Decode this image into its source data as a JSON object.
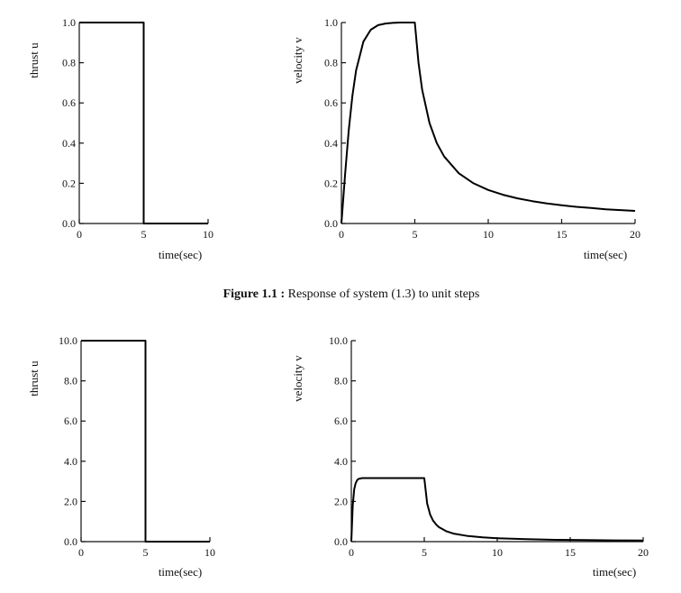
{
  "caption": {
    "prefix": "Figure 1.1 :",
    "text": " Response of system (1.3) to unit steps"
  },
  "chart_data": [
    {
      "type": "line",
      "ylabel": "thrust  u",
      "xlabel": "time(sec)",
      "xlim": [
        0,
        10
      ],
      "ylim": [
        0,
        1
      ],
      "xticks": [
        0,
        5,
        10
      ],
      "xtick_labels": [
        "0",
        "5",
        "10"
      ],
      "yticks": [
        0,
        0.2,
        0.4,
        0.6,
        0.8,
        1.0
      ],
      "ytick_labels": [
        "0.0",
        "0.2",
        "0.4",
        "0.6",
        "0.8",
        "1.0"
      ],
      "series": [
        {
          "x": [
            0,
            5,
            5,
            10
          ],
          "y": [
            1.0,
            1.0,
            0.0,
            0.0
          ]
        }
      ]
    },
    {
      "type": "line",
      "ylabel": "velocity  v",
      "xlabel": "time(sec)",
      "xlim": [
        0,
        20
      ],
      "ylim": [
        0,
        1
      ],
      "xticks": [
        0,
        5,
        10,
        15,
        20
      ],
      "xtick_labels": [
        "0",
        "5",
        "10",
        "15",
        "20"
      ],
      "yticks": [
        0,
        0.2,
        0.4,
        0.6,
        0.8,
        1.0
      ],
      "ytick_labels": [
        "0.0",
        "0.2",
        "0.4",
        "0.6",
        "0.8",
        "1.0"
      ],
      "series": [
        {
          "x": [
            0,
            0.25,
            0.5,
            0.75,
            1,
            1.5,
            2,
            2.5,
            3,
            3.5,
            4,
            5,
            5.25,
            5.5,
            6,
            6.5,
            7,
            8,
            9,
            10,
            11,
            12,
            13,
            14,
            15,
            16,
            17,
            18,
            19,
            20
          ],
          "y": [
            0,
            0.245,
            0.462,
            0.635,
            0.762,
            0.905,
            0.964,
            0.987,
            0.995,
            0.998,
            1.0,
            1.0,
            0.8,
            0.667,
            0.5,
            0.4,
            0.333,
            0.25,
            0.2,
            0.167,
            0.143,
            0.125,
            0.111,
            0.1,
            0.091,
            0.083,
            0.077,
            0.071,
            0.067,
            0.063
          ]
        }
      ]
    },
    {
      "type": "line",
      "ylabel": "thrust  u",
      "xlabel": "time(sec)",
      "xlim": [
        0,
        10
      ],
      "ylim": [
        0,
        10
      ],
      "xticks": [
        0,
        5,
        10
      ],
      "xtick_labels": [
        "0",
        "5",
        "10"
      ],
      "yticks": [
        0,
        2,
        4,
        6,
        8,
        10
      ],
      "ytick_labels": [
        "0.0",
        "2.0",
        "4.0",
        "6.0",
        "8.0",
        "10.0"
      ],
      "series": [
        {
          "x": [
            0,
            5,
            5,
            10
          ],
          "y": [
            10.0,
            10.0,
            0.0,
            0.0
          ]
        }
      ]
    },
    {
      "type": "line",
      "ylabel": "velocity  v",
      "xlabel": "time(sec)",
      "xlim": [
        0,
        20
      ],
      "ylim": [
        0,
        10
      ],
      "xticks": [
        0,
        5,
        10,
        15,
        20
      ],
      "xtick_labels": [
        "0",
        "5",
        "10",
        "15",
        "20"
      ],
      "yticks": [
        0,
        2,
        4,
        6,
        8,
        10
      ],
      "ytick_labels": [
        "0.0",
        "2.0",
        "4.0",
        "6.0",
        "8.0",
        "10.0"
      ],
      "series": [
        {
          "x": [
            0,
            0.1,
            0.2,
            0.3,
            0.4,
            0.5,
            0.75,
            1,
            1.5,
            2,
            3,
            4,
            5,
            5.2,
            5.4,
            5.6,
            5.8,
            6,
            6.5,
            7,
            8,
            9,
            10,
            12,
            14,
            16,
            18,
            20
          ],
          "y": [
            0,
            1.8,
            2.6,
            2.92,
            3.06,
            3.12,
            3.16,
            3.16,
            3.16,
            3.16,
            3.16,
            3.16,
            3.16,
            1.9,
            1.35,
            1.05,
            0.86,
            0.72,
            0.52,
            0.4,
            0.28,
            0.21,
            0.17,
            0.12,
            0.09,
            0.075,
            0.063,
            0.055
          ]
        }
      ]
    }
  ]
}
